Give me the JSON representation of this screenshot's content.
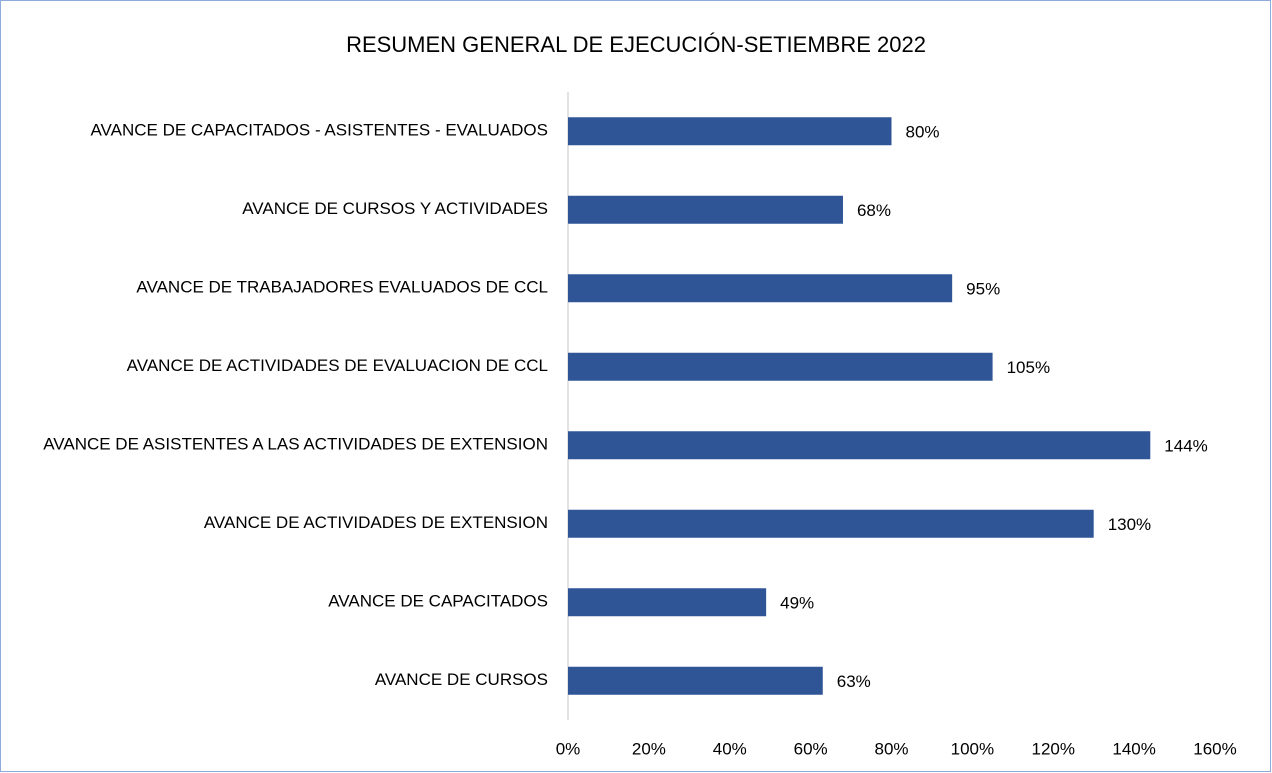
{
  "chart_data": {
    "type": "bar",
    "orientation": "horizontal",
    "title": "RESUMEN GENERAL DE EJECUCIÓN-SETIEMBRE 2022",
    "categories": [
      "AVANCE DE CAPACITADOS - ASISTENTES - EVALUADOS",
      "AVANCE DE CURSOS Y ACTIVIDADES",
      "AVANCE DE TRABAJADORES EVALUADOS DE CCL",
      "AVANCE DE ACTIVIDADES DE EVALUACION DE CCL",
      "AVANCE DE ASISTENTES A LAS ACTIVIDADES DE EXTENSION",
      "AVANCE DE ACTIVIDADES DE EXTENSION",
      "AVANCE DE CAPACITADOS",
      "AVANCE DE CURSOS"
    ],
    "values": [
      80,
      68,
      95,
      105,
      144,
      130,
      49,
      63
    ],
    "value_labels": [
      "80%",
      "68%",
      "95%",
      "105%",
      "144%",
      "130%",
      "49%",
      "63%"
    ],
    "color": "#2f5597",
    "xlim": [
      0,
      160
    ],
    "xticks": [
      {
        "value": 0,
        "label": "0%"
      },
      {
        "value": 20,
        "label": "20%"
      },
      {
        "value": 40,
        "label": "40%"
      },
      {
        "value": 60,
        "label": "60%"
      },
      {
        "value": 80,
        "label": "80%"
      },
      {
        "value": 100,
        "label": "100%"
      },
      {
        "value": 120,
        "label": "120%"
      },
      {
        "value": 140,
        "label": "140%"
      },
      {
        "value": 160,
        "label": "160%"
      }
    ],
    "grid": false
  }
}
